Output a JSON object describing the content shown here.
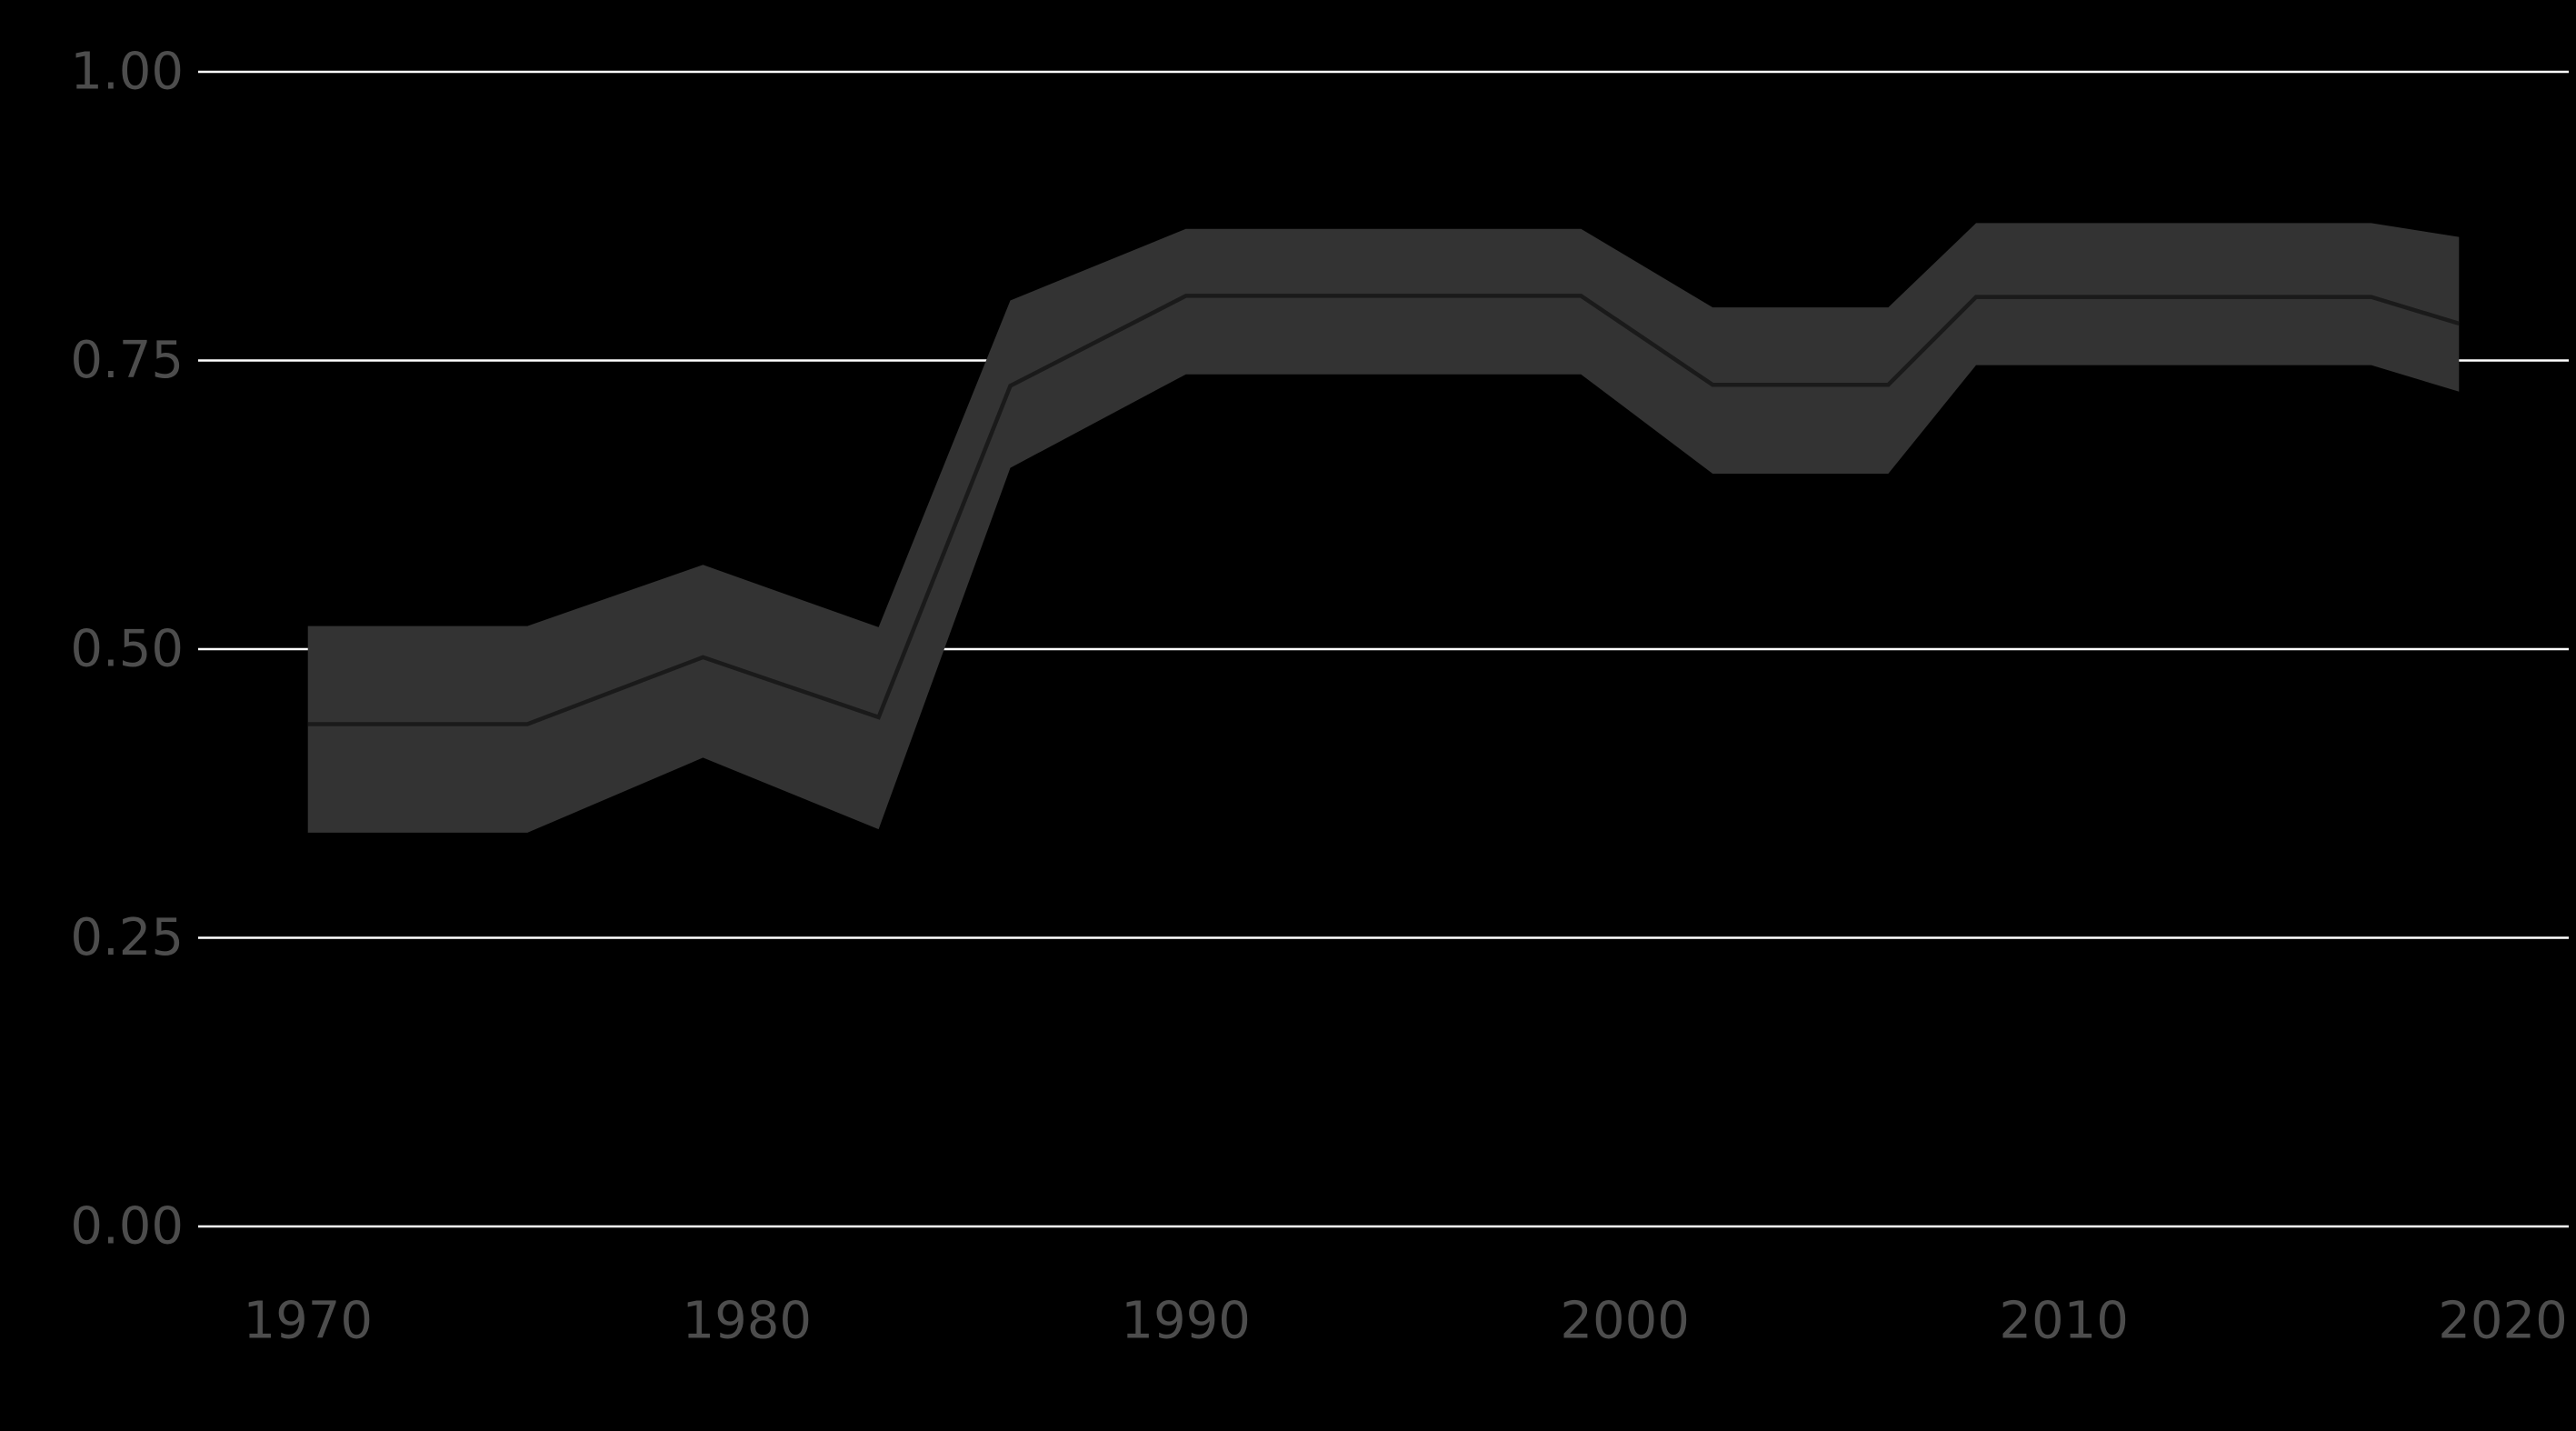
{
  "chart_data": {
    "type": "line",
    "title": "",
    "xlabel": "",
    "ylabel": "",
    "xlim": [
      1967.5,
      2021.5
    ],
    "ylim": [
      0,
      1
    ],
    "grid": true,
    "x_ticks": [
      1970,
      1980,
      1990,
      2000,
      2010,
      2020
    ],
    "y_ticks": [
      0,
      0.25,
      0.5,
      0.75,
      1
    ],
    "y_tick_labels": [
      "0.00",
      "0.25",
      "0.50",
      "0.75",
      "1.00"
    ],
    "series": [
      {
        "x": [
          1970,
          1975,
          1979,
          1983,
          1986,
          1990,
          1999,
          2002,
          2006,
          2008,
          2017,
          2019
        ],
        "y": [
          0.435,
          0.435,
          0.493,
          0.441,
          0.728,
          0.806,
          0.806,
          0.729,
          0.729,
          0.805,
          0.805,
          0.782
        ],
        "lower": [
          0.341,
          0.341,
          0.406,
          0.344,
          0.657,
          0.738,
          0.738,
          0.652,
          0.652,
          0.746,
          0.746,
          0.723
        ],
        "upper": [
          0.52,
          0.52,
          0.573,
          0.519,
          0.802,
          0.864,
          0.864,
          0.796,
          0.796,
          0.869,
          0.869,
          0.857
        ]
      }
    ],
    "colors": {
      "background": "#000000",
      "grid": "#ffffff",
      "band": "#333333",
      "line": "#1a1a1a",
      "tick_text": "#4d4d4d"
    }
  }
}
